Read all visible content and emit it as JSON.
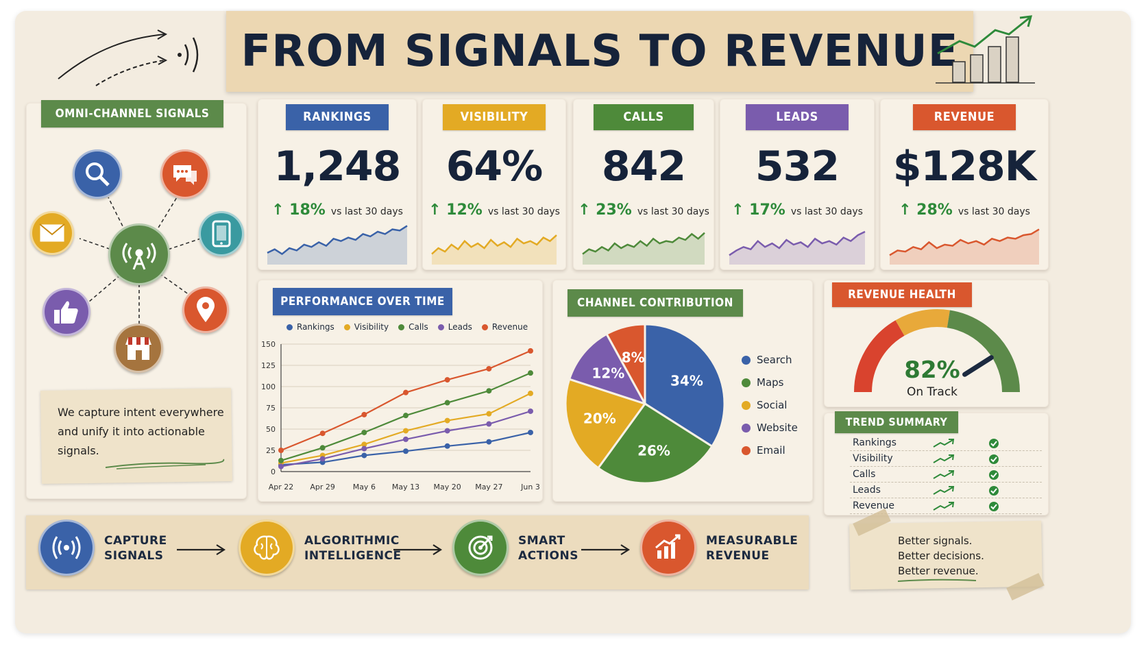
{
  "title": "FROM SIGNALS TO REVENUE",
  "signals": {
    "heading": "OMNI-CHANNEL SIGNALS",
    "note": [
      "We capture intent everywhere",
      "and unify it into actionable",
      "signals."
    ],
    "icons": [
      "search-icon",
      "chat-icon",
      "mail-icon",
      "phone-icon",
      "broadcast-icon",
      "thumbs-up-icon",
      "location-pin-icon",
      "store-icon"
    ]
  },
  "kpis": [
    {
      "label": "RANKINGS",
      "value": "1,248",
      "delta": "↑ 18%",
      "vs": "vs last 30 days",
      "color": "#3a62a8",
      "spark": [
        20,
        26,
        18,
        28,
        24,
        34,
        30,
        38,
        32,
        44,
        40,
        46,
        42,
        52,
        48,
        56,
        52,
        60,
        58,
        66
      ]
    },
    {
      "label": "VISIBILITY",
      "value": "64%",
      "delta": "↑ 12%",
      "vs": "vs last 30 days",
      "color": "#e3aa24",
      "spark": [
        18,
        28,
        22,
        34,
        26,
        40,
        30,
        36,
        28,
        42,
        32,
        38,
        30,
        44,
        36,
        40,
        34,
        46,
        40,
        50
      ]
    },
    {
      "label": "CALLS",
      "value": "842",
      "delta": "↑ 23%",
      "vs": "vs last 30 days",
      "color": "#4e8a3a",
      "spark": [
        18,
        26,
        22,
        30,
        24,
        36,
        28,
        34,
        30,
        40,
        32,
        44,
        36,
        40,
        38,
        46,
        42,
        52,
        44,
        54
      ]
    },
    {
      "label": "LEADS",
      "value": "532",
      "delta": "↑ 17%",
      "vs": "vs last 30 days",
      "color": "#7a5cad",
      "spark": [
        16,
        24,
        30,
        26,
        40,
        30,
        36,
        28,
        42,
        34,
        38,
        30,
        44,
        36,
        40,
        34,
        46,
        40,
        50,
        56
      ]
    },
    {
      "label": "REVENUE",
      "value": "$128K",
      "delta": "↑ 28%",
      "vs": "vs last 30 days",
      "color": "#d9572e",
      "spark": [
        16,
        24,
        22,
        30,
        26,
        38,
        28,
        34,
        32,
        42,
        36,
        40,
        34,
        44,
        40,
        46,
        44,
        50,
        52,
        60
      ]
    }
  ],
  "performance": {
    "heading": "PERFORMANCE OVER TIME",
    "chart_data": {
      "type": "line",
      "categories": [
        "Apr 22",
        "Apr 29",
        "May 6",
        "May 13",
        "May 20",
        "May 27",
        "Jun 3"
      ],
      "ylim": [
        0,
        150
      ],
      "yticks": [
        0,
        25,
        50,
        75,
        100,
        125,
        150
      ],
      "series": [
        {
          "name": "Rankings",
          "color": "#3a62a8",
          "values": [
            8,
            11,
            19,
            24,
            30,
            35,
            46
          ]
        },
        {
          "name": "Visibility",
          "color": "#e3aa24",
          "values": [
            10,
            19,
            32,
            48,
            60,
            68,
            92
          ]
        },
        {
          "name": "Calls",
          "color": "#4e8a3a",
          "values": [
            13,
            28,
            46,
            66,
            81,
            95,
            116
          ]
        },
        {
          "name": "Leads",
          "color": "#7a5cad",
          "values": [
            6,
            15,
            27,
            38,
            48,
            56,
            71
          ]
        },
        {
          "name": "Revenue",
          "color": "#d9572e",
          "values": [
            25,
            45,
            67,
            93,
            108,
            121,
            142
          ]
        }
      ]
    }
  },
  "channel": {
    "heading": "CHANNEL CONTRIBUTION",
    "chart_data": {
      "type": "pie",
      "slices": [
        {
          "name": "Search",
          "value": 34,
          "label": "34%",
          "color": "#3a62a8"
        },
        {
          "name": "Maps",
          "value": 26,
          "label": "26%",
          "color": "#4e8a3a"
        },
        {
          "name": "Social",
          "value": 20,
          "label": "20%",
          "color": "#e3aa24"
        },
        {
          "name": "Website",
          "value": 12,
          "label": "12%",
          "color": "#7a5cad"
        },
        {
          "name": "Email",
          "value": 8,
          "label": "8%",
          "color": "#d9572e"
        }
      ]
    }
  },
  "health": {
    "heading": "REVENUE HEALTH",
    "value": "82%",
    "status": "On Track",
    "gauge_fraction": 0.82
  },
  "trend": {
    "heading": "TREND SUMMARY",
    "rows": [
      "Rankings",
      "Visibility",
      "Calls",
      "Leads",
      "Revenue"
    ]
  },
  "flow": [
    {
      "line1": "CAPTURE",
      "line2": "SIGNALS",
      "color": "#3a62a8",
      "icon": "broadcast-icon"
    },
    {
      "line1": "ALGORITHMIC",
      "line2": "INTELLIGENCE",
      "color": "#e3aa24",
      "icon": "brain-icon"
    },
    {
      "line1": "SMART",
      "line2": "ACTIONS",
      "color": "#4e8a3a",
      "icon": "target-icon"
    },
    {
      "line1": "MEASURABLE",
      "line2": "REVENUE",
      "color": "#d9572e",
      "icon": "bar-growth-icon"
    }
  ],
  "tagline": [
    "Better signals.",
    "Better decisions.",
    "Better revenue."
  ]
}
